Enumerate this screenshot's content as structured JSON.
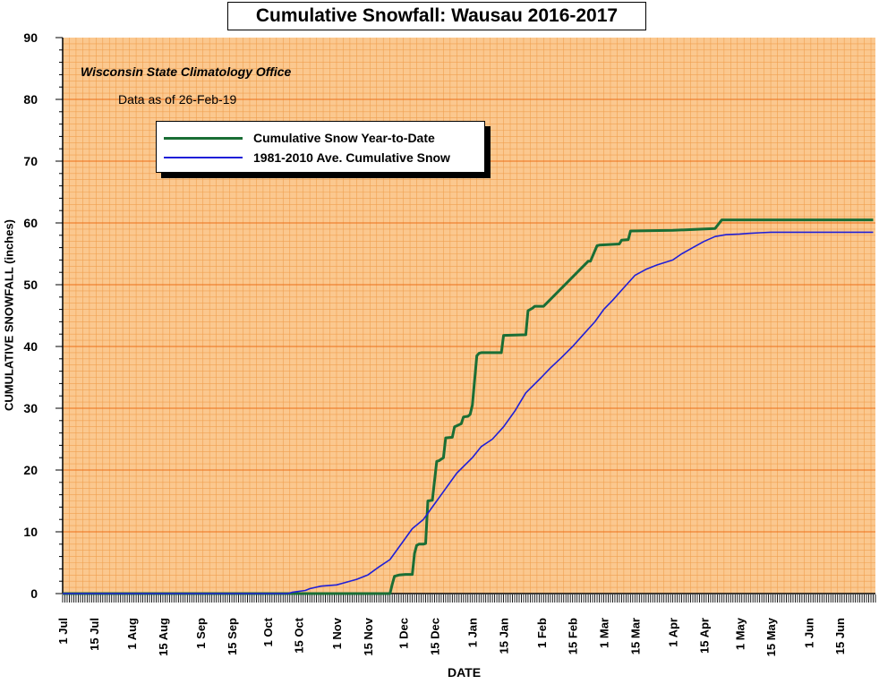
{
  "title": "Cumulative Snowfall: Wausau 2016-2017",
  "source": "Wisconsin State Climatology Office",
  "data_as_of": "Data as of 26-Feb-19",
  "colors": {
    "plot_background": "#fbc88f",
    "grid_minor": "#f0a050",
    "grid_major": "#ed6f1a",
    "actual_series": "#1a6e35",
    "average_series": "#1f1fd8"
  },
  "chart_data": {
    "type": "line",
    "title": "Cumulative Snowfall: Wausau 2016-2017",
    "xlabel": "DATE",
    "ylabel": "CUMULATIVE SNOWFALL (inches)",
    "ylim": [
      0,
      90
    ],
    "xlim": [
      "1 Jul",
      "30 Jun"
    ],
    "yticks": [
      0,
      10,
      20,
      30,
      40,
      50,
      60,
      70,
      80,
      90
    ],
    "xticks": [
      "1 Jul",
      "15 Jul",
      "1 Aug",
      "15 Aug",
      "1 Sep",
      "15 Sep",
      "1 Oct",
      "15 Oct",
      "1 Nov",
      "15 Nov",
      "1 Dec",
      "15 Dec",
      "1 Jan",
      "15 Jan",
      "1 Feb",
      "15 Feb",
      "1 Mar",
      "15 Mar",
      "1 Apr",
      "15 Apr",
      "1 May",
      "15 May",
      "1 Jun",
      "15 Jun"
    ],
    "grid": true,
    "legend_position": "upper-left",
    "series": [
      {
        "name": "Cumulative Snow Year-to-Date",
        "color": "#1a6e35",
        "x": [
          "1 Jul",
          "25 Nov",
          "26 Nov",
          "27 Nov",
          "29 Nov",
          "2 Dec",
          "5 Dec",
          "6 Dec",
          "7 Dec",
          "8 Dec",
          "10 Dec",
          "11 Dec",
          "12 Dec",
          "14 Dec",
          "16 Dec",
          "17 Dec",
          "19 Dec",
          "20 Dec",
          "23 Dec",
          "24 Dec",
          "27 Dec",
          "28 Dec",
          "30 Dec",
          "31 Dec",
          "1 Jan",
          "3 Jan",
          "4 Jan",
          "5 Jan",
          "6 Jan",
          "14 Jan",
          "15 Jan",
          "25 Jan",
          "26 Jan",
          "28 Jan",
          "29 Jan",
          "1 Feb",
          "2 Feb",
          "22 Feb",
          "23 Feb",
          "26 Feb",
          "27 Feb",
          "8 Mar",
          "9 Mar",
          "12 Mar",
          "13 Mar",
          "1 Apr",
          "20 Apr",
          "23 Apr",
          "30 Jun"
        ],
        "y": [
          0,
          0,
          1.5,
          2.8,
          3.0,
          3.1,
          3.1,
          6.5,
          7.8,
          8.0,
          8.0,
          8.1,
          15.0,
          15.1,
          21.4,
          21.5,
          22.0,
          25.2,
          25.3,
          27.0,
          27.5,
          28.6,
          28.7,
          29.0,
          30.5,
          38.5,
          38.9,
          39.0,
          39.0,
          39.0,
          41.8,
          41.9,
          45.8,
          46.2,
          46.5,
          46.5,
          46.5,
          53.8,
          53.8,
          56.3,
          56.4,
          56.6,
          57.2,
          57.3,
          58.7,
          58.8,
          59.1,
          60.5,
          60.5
        ]
      },
      {
        "name": "1981-2010 Ave. Cumulative Snow",
        "color": "#1f1fd8",
        "x": [
          "1 Jul",
          "10 Oct",
          "12 Oct",
          "18 Oct",
          "20 Oct",
          "25 Oct",
          "1 Nov",
          "5 Nov",
          "10 Nov",
          "15 Nov",
          "20 Nov",
          "25 Nov",
          "1 Dec",
          "5 Dec",
          "10 Dec",
          "15 Dec",
          "20 Dec",
          "25 Dec",
          "1 Jan",
          "5 Jan",
          "10 Jan",
          "15 Jan",
          "20 Jan",
          "25 Jan",
          "1 Feb",
          "5 Feb",
          "10 Feb",
          "15 Feb",
          "20 Feb",
          "25 Feb",
          "1 Mar",
          "5 Mar",
          "10 Mar",
          "15 Mar",
          "20 Mar",
          "25 Mar",
          "1 Apr",
          "5 Apr",
          "10 Apr",
          "15 Apr",
          "20 Apr",
          "25 Apr",
          "1 May",
          "5 May",
          "10 May",
          "15 May",
          "20 May",
          "30 Jun"
        ],
        "y": [
          0,
          0,
          0.2,
          0.5,
          0.8,
          1.2,
          1.4,
          1.8,
          2.3,
          3.0,
          4.3,
          5.5,
          8.5,
          10.5,
          12.0,
          14.5,
          17.0,
          19.5,
          22.0,
          23.8,
          25.0,
          27.0,
          29.5,
          32.5,
          35.0,
          36.5,
          38.2,
          40.0,
          42.0,
          44.0,
          46.0,
          47.5,
          49.5,
          51.5,
          52.5,
          53.2,
          54.0,
          55.0,
          56.0,
          57.0,
          57.8,
          58.1,
          58.2,
          58.3,
          58.4,
          58.5,
          58.5,
          58.5
        ]
      }
    ]
  }
}
